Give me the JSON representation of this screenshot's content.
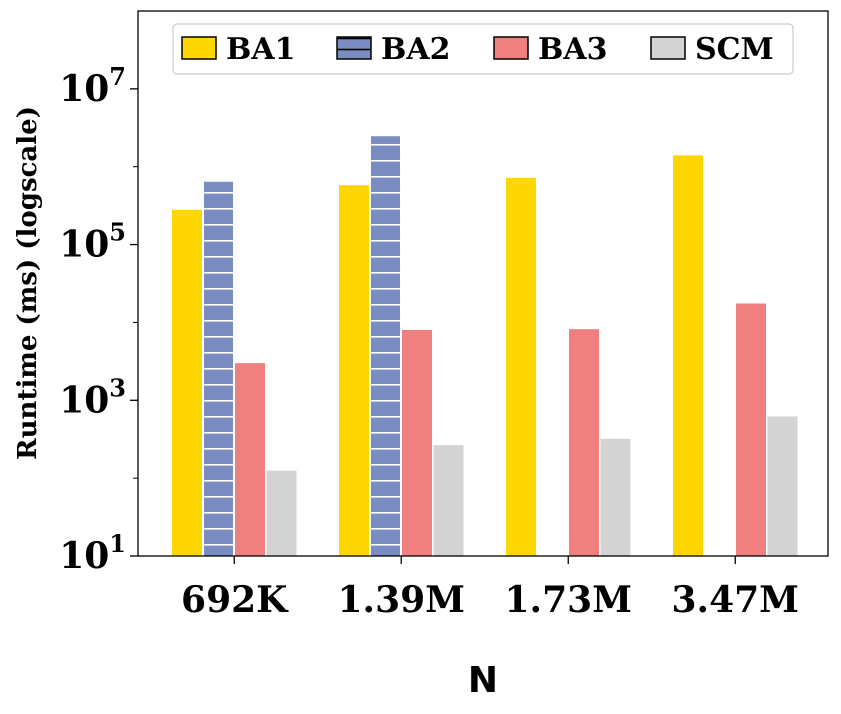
{
  "chart_data": {
    "type": "bar",
    "title": "",
    "xlabel": "N",
    "ylabel": "Runtime (ms) (logscale)",
    "yscale": "log",
    "ylim": [
      10,
      100000000
    ],
    "yticks": [
      {
        "value": 10,
        "base": "10",
        "exp": "1"
      },
      {
        "value": 1000,
        "base": "10",
        "exp": "3"
      },
      {
        "value": 100000,
        "base": "10",
        "exp": "5"
      },
      {
        "value": 10000000,
        "base": "10",
        "exp": "7"
      }
    ],
    "categories": [
      "692K",
      "1.39M",
      "1.73M",
      "3.47M"
    ],
    "series": [
      {
        "name": "BA1",
        "color": "#FFD700",
        "pattern": "none",
        "values": [
          280000,
          580000,
          720000,
          1400000
        ]
      },
      {
        "name": "BA2",
        "color": "#7A8CC0",
        "pattern": "horizontal-hatch",
        "values": [
          650000,
          2500000,
          null,
          null
        ]
      },
      {
        "name": "BA3",
        "color": "#F08080",
        "pattern": "none",
        "values": [
          3000,
          8000,
          8200,
          17500
        ]
      },
      {
        "name": "SCM",
        "color": "#D3D3D3",
        "pattern": "none",
        "values": [
          125,
          265,
          320,
          620
        ]
      }
    ],
    "legend": {
      "position": "top",
      "columns": 4
    },
    "grid": false
  }
}
